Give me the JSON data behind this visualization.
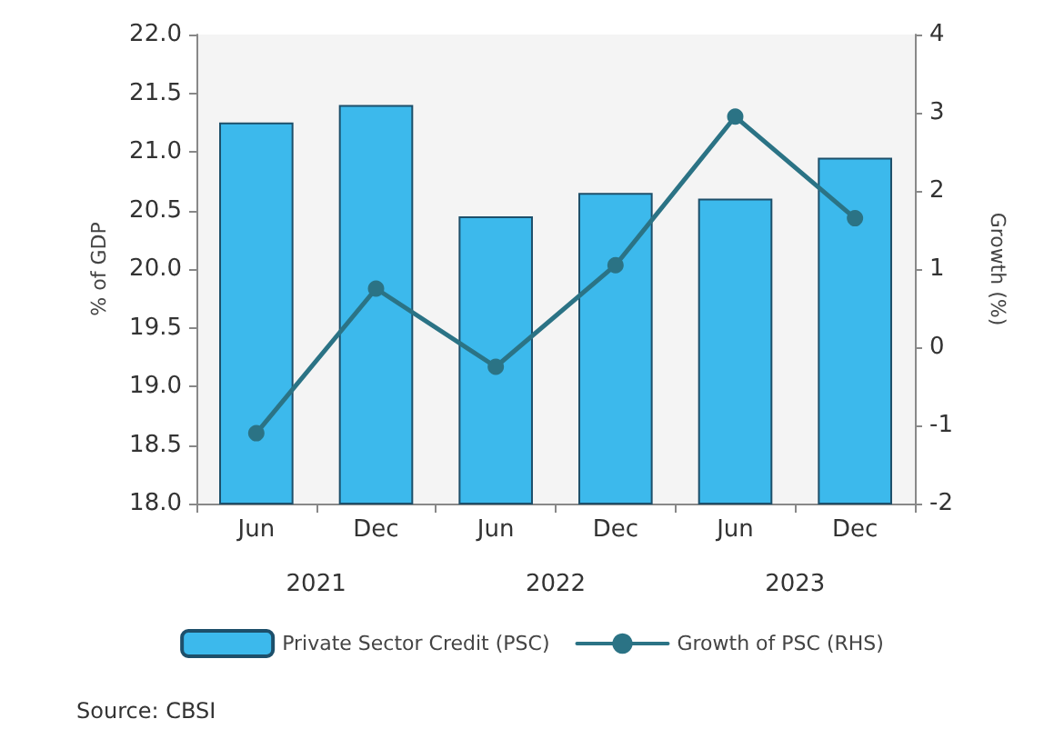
{
  "chart_data": {
    "type": "bar",
    "ylabel": "% of GDP",
    "y2label": "Growth (%)",
    "categories": [
      "Jun",
      "Dec",
      "Jun",
      "Dec",
      "Jun",
      "Dec"
    ],
    "series": [
      {
        "name": "Private Sector Credit (PSC)",
        "color": "#3cb9ec",
        "values": [
          21.25,
          21.4,
          20.45,
          20.65,
          20.6,
          20.95
        ]
      },
      {
        "name": "Growth of PSC (RHS)",
        "type": "line",
        "axis": "y2",
        "color": "#2b7385",
        "values": [
          -1.1,
          0.75,
          -0.25,
          1.05,
          2.95,
          1.65
        ]
      }
    ],
    "ylim": [
      18,
      22
    ],
    "yticks": [
      {
        "value": 18,
        "label": "18.0"
      },
      {
        "value": 18.5,
        "label": "18.5"
      },
      {
        "value": 19,
        "label": "19.0"
      },
      {
        "value": 19.5,
        "label": "19.5"
      },
      {
        "value": 20,
        "label": "20.0"
      },
      {
        "value": 20.5,
        "label": "20.5"
      },
      {
        "value": 21,
        "label": "21.0"
      },
      {
        "value": 21.5,
        "label": "21.5"
      },
      {
        "value": 22,
        "label": "22.0"
      }
    ],
    "y2lim": [
      -2,
      4
    ],
    "y2ticks": [
      -2,
      -1,
      0,
      1,
      2,
      3,
      4
    ],
    "annotations": [
      "2021",
      "2022",
      "2023",
      "Source: CBSI"
    ],
    "legend": "bottom",
    "grid": false,
    "marker": "circle",
    "line_style": "solid"
  }
}
